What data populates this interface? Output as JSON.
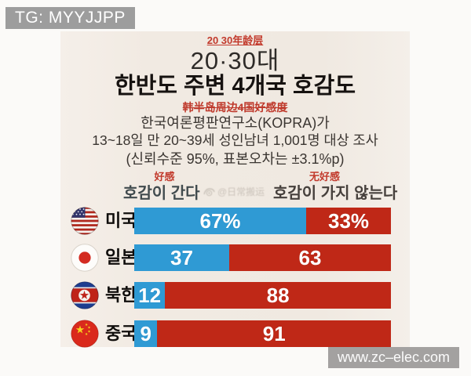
{
  "watermarks": {
    "top_left": "TG: MYYJJPP",
    "bottom_right": "www.zc–elec.com",
    "weibo": "@日常搬运"
  },
  "header": {
    "zh_age_label": "20 30年龄层",
    "age_title": "20·30대",
    "main_title": "한반도 주변 4개국 호감도",
    "zh_subtitle": "韩半岛周边4国好感度",
    "source_line1": "한국여론평판연구소(KOPRA)가",
    "source_line2": "13~18일 만 20~39세 성인남녀 1,001명 대상 조사",
    "source_line3": "(신뢰수준 95%, 표본오차는 ±3.1%p)"
  },
  "legend": {
    "favorable_zh": "好感",
    "favorable_ko": "호감이 간다",
    "unfavorable_zh": "无好感",
    "unfavorable_ko": "호감이 가지 않는다"
  },
  "chart_data": {
    "type": "bar",
    "orientation": "horizontal-stacked",
    "title": "20·30대 한반도 주변 4개국 호감도",
    "categories": [
      "미국",
      "일본",
      "북한",
      "중국"
    ],
    "series": [
      {
        "name": "호감이 간다",
        "color": "#2f9ad4",
        "values": [
          67,
          37,
          12,
          9
        ]
      },
      {
        "name": "호감이 가지 않는다",
        "color": "#bf2817",
        "values": [
          33,
          63,
          88,
          91
        ]
      }
    ],
    "value_labels": [
      [
        "67%",
        "33%"
      ],
      [
        "37",
        "63"
      ],
      [
        "12",
        "88"
      ],
      [
        "9",
        "91"
      ]
    ],
    "xlim": [
      0,
      100
    ],
    "legend_position": "top",
    "flags": [
      "usa",
      "japan",
      "north-korea",
      "china"
    ]
  },
  "colors": {
    "favorable_blue": "#2f9ad4",
    "unfavorable_red": "#bf2817",
    "annotation_red": "#c23a2c",
    "card_background": "#f1eae2",
    "watermark_gray": "#9d9d9d"
  }
}
